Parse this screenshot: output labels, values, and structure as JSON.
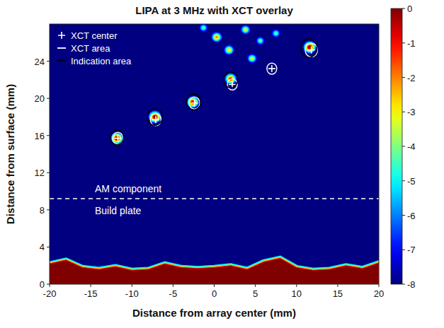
{
  "chart_data": {
    "type": "heatmap",
    "title": "LIPA at 3 MHz with XCT overlay",
    "x_label": "Distance from array center (mm)",
    "y_label": "Distance from surface (mm)",
    "xlim": [
      -20,
      20
    ],
    "xticks": [
      -20,
      -15,
      -10,
      -5,
      0,
      5,
      10,
      15,
      20
    ],
    "ylim": [
      0,
      28
    ],
    "yticks": [
      0,
      4,
      8,
      12,
      16,
      20,
      24
    ],
    "legend": "upper left",
    "series": [
      {
        "name": "XCT center",
        "marker": "plus",
        "color": "#ffffff",
        "x": [
          -11.7,
          -7.1,
          -2.4,
          2.2,
          7.0,
          11.8
        ],
        "values": [
          15.7,
          17.7,
          19.5,
          21.5,
          23.2,
          25.2
        ]
      },
      {
        "name": "XCT area",
        "marker": "circle",
        "color": "#ffffff",
        "x": [
          -11.7,
          -7.1,
          -2.4,
          2.2,
          7.0,
          11.8
        ],
        "values": [
          15.7,
          17.7,
          19.5,
          21.5,
          23.2,
          25.2
        ],
        "sizes": [
          1.3,
          1.3,
          1.3,
          1.2,
          1.2,
          1.5
        ]
      },
      {
        "name": "Indication area",
        "marker": "circle",
        "color": "#000000",
        "x": [
          -11.8,
          -7.2,
          -2.5,
          2.0,
          11.5
        ],
        "values": [
          15.8,
          18.0,
          19.6,
          22.0,
          25.4
        ],
        "sizes": [
          1.6,
          1.8,
          1.7,
          1.7,
          2.0
        ]
      }
    ],
    "indications": {
      "x": [
        -11.8,
        -7.2,
        -2.6,
        2.0,
        11.6,
        0.3,
        1.8,
        3.8,
        4.6,
        5.6,
        7.5,
        -1.3
      ],
      "values": [
        15.7,
        18.0,
        19.6,
        22.1,
        25.5,
        26.6,
        25.2,
        27.4,
        24.3,
        26.2,
        27.0,
        27.6
      ],
      "amplitude": [
        0,
        0,
        -0.5,
        -1,
        0,
        -2,
        -2.5,
        -3,
        -3,
        -4,
        -4,
        -4
      ]
    },
    "backwall": {
      "x": [
        -20,
        -18,
        -16,
        -14,
        -12,
        -10,
        -8,
        -6,
        -4,
        -2,
        0,
        2,
        4,
        6,
        8,
        10,
        12,
        14,
        16,
        18,
        20
      ],
      "values": [
        2.2,
        2.6,
        1.8,
        1.6,
        1.9,
        1.5,
        1.6,
        2.2,
        1.8,
        1.7,
        1.8,
        2.0,
        1.6,
        2.4,
        2.8,
        1.8,
        1.5,
        1.6,
        2.0,
        1.7,
        2.3
      ]
    },
    "interface_depth": 9.2,
    "annotations": [
      "AM component",
      "Build plate"
    ],
    "colorbar": {
      "range": [
        -8,
        0
      ],
      "ticks": [
        0,
        -1,
        -2,
        -3,
        -4,
        -5,
        -6,
        -7,
        -8
      ]
    }
  }
}
